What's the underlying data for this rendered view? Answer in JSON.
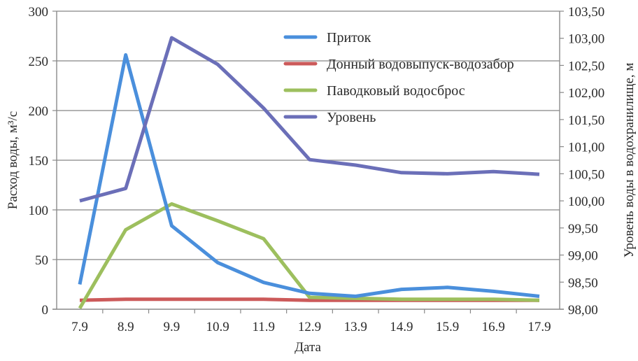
{
  "chart_data": {
    "type": "line",
    "title": "",
    "xlabel": "Дата",
    "ylabel": "Расход воды, м³/с",
    "ylabel_right": "Уровень воды в водохранилище, м",
    "categories": [
      "7.9",
      "8.9",
      "9.9",
      "10.9",
      "11.9",
      "12.9",
      "13.9",
      "14.9",
      "15.9",
      "16.9",
      "17.9"
    ],
    "ylim": [
      0,
      300
    ],
    "yticks": [
      "0",
      "50",
      "100",
      "150",
      "200",
      "250",
      "300"
    ],
    "ylim_right": [
      98.0,
      103.5
    ],
    "yticks_right": [
      "98,00",
      "98,50",
      "99,00",
      "99,50",
      "100,00",
      "100,50",
      "101,00",
      "101,50",
      "102,00",
      "102,50",
      "103,00",
      "103,50"
    ],
    "grid": true,
    "legend_position": "upper-right inside",
    "series": [
      {
        "name": "Приток",
        "axis": "left",
        "color": "#4a8fdc",
        "values": [
          25,
          256,
          84,
          47,
          27,
          16,
          13,
          20,
          22,
          18,
          13
        ]
      },
      {
        "name": "Донный водовыпуск-водозабор",
        "axis": "left",
        "color": "#cc5a5a",
        "values": [
          9,
          10,
          10,
          10,
          10,
          9,
          9,
          9,
          9,
          9,
          9
        ]
      },
      {
        "name": "Паводковый водосброс",
        "axis": "left",
        "color": "#9dbf5e",
        "values": [
          1,
          80,
          106,
          89,
          71,
          12,
          11,
          10,
          10,
          10,
          9
        ]
      },
      {
        "name": "Уровень",
        "axis": "right",
        "color": "#6b6fb8",
        "values": [
          100.0,
          100.23,
          103.01,
          102.52,
          101.71,
          100.76,
          100.66,
          100.52,
          100.5,
          100.54,
          100.49
        ]
      }
    ]
  }
}
